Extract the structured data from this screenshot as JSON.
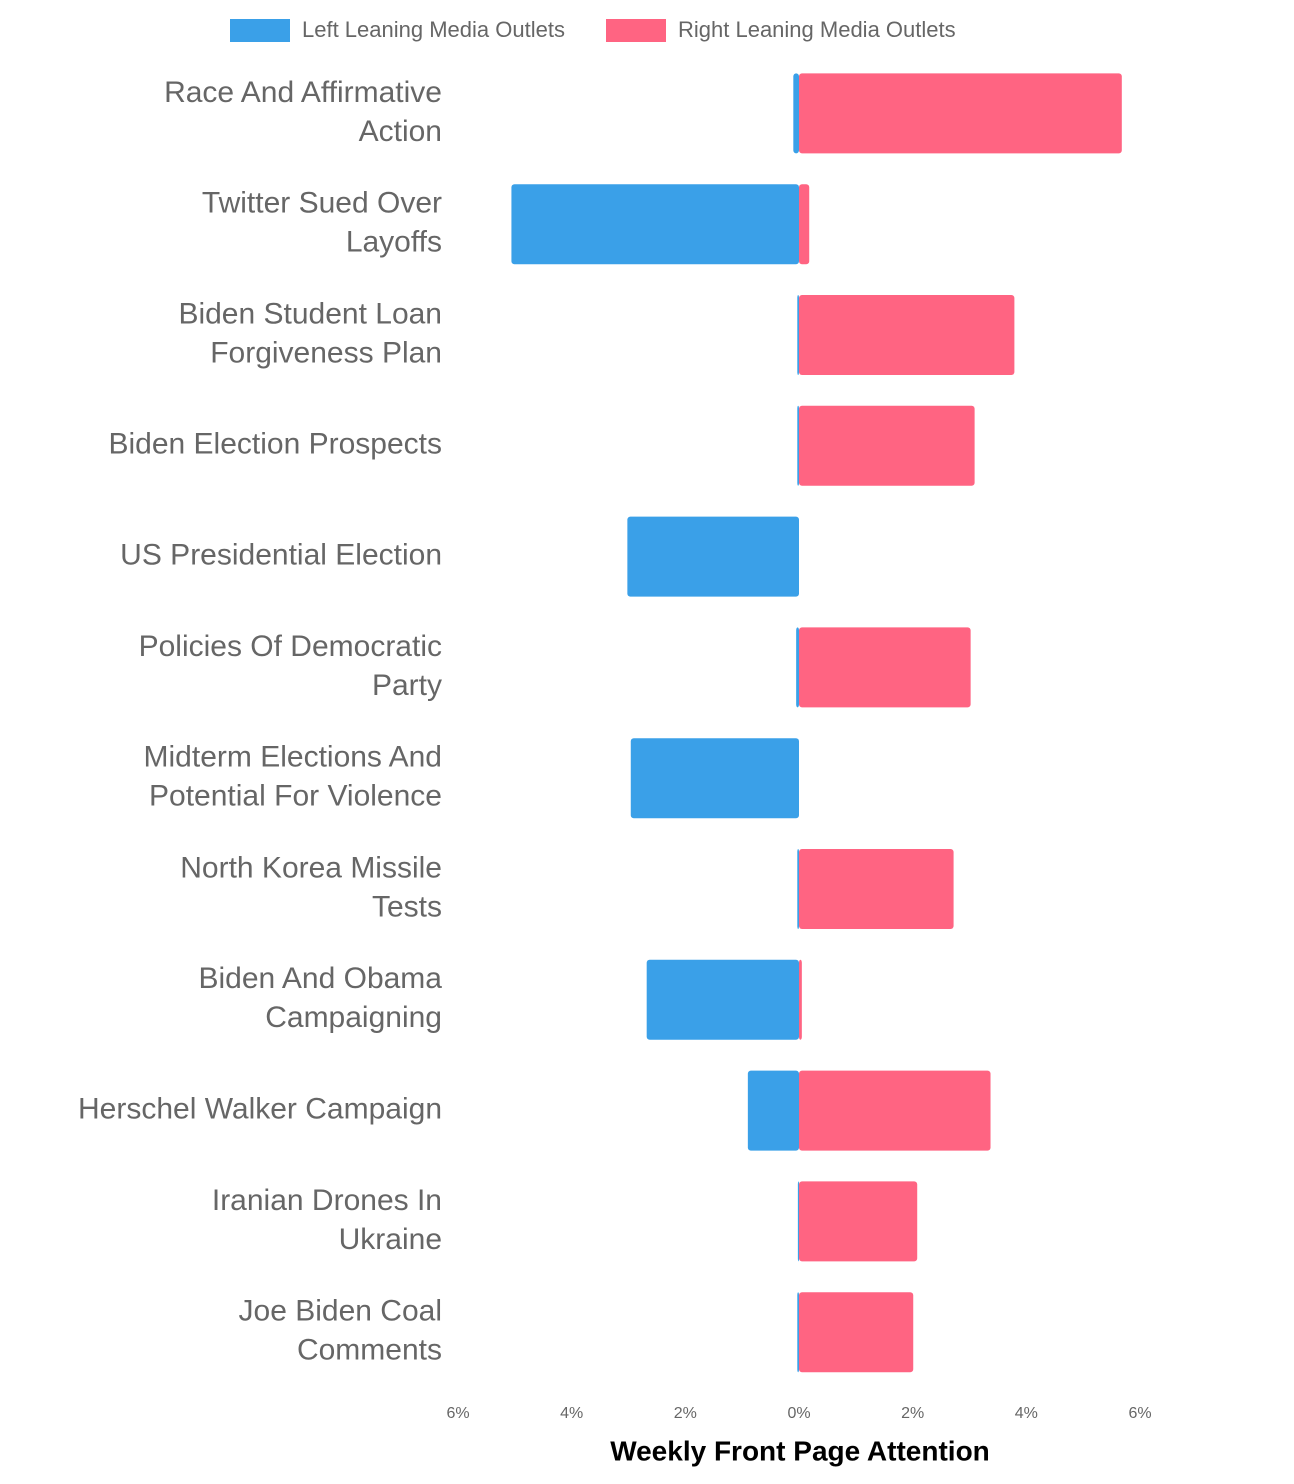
{
  "chart_data": {
    "type": "diverging_bar",
    "x_label": "Weekly Front Page Attention",
    "categories": [
      [
        "Race And Affirmative",
        "Action"
      ],
      [
        "Twitter Sued Over",
        "Layoffs"
      ],
      [
        "Biden Student Loan",
        "Forgiveness Plan"
      ],
      [
        "Biden Election Prospects"
      ],
      [
        "US Presidential Election"
      ],
      [
        "Policies Of Democratic",
        "Party"
      ],
      [
        "Midterm Elections And",
        "Potential For Violence"
      ],
      [
        "North Korea Missile",
        "Tests"
      ],
      [
        "Biden And Obama",
        "Campaigning"
      ],
      [
        "Herschel Walker Campaign"
      ],
      [
        "Iranian Drones In",
        "Ukraine"
      ],
      [
        "Joe Biden Coal",
        "Comments"
      ]
    ],
    "series": [
      {
        "name": "Left Leaning Media Outlets",
        "color": "#3aa0e8",
        "values": [
          -0.1,
          -5.06,
          -0.03,
          -0.03,
          -3.02,
          -0.05,
          -2.96,
          -0.03,
          -2.68,
          -0.9,
          -0.02,
          -0.03
        ]
      },
      {
        "name": "Right Leaning Media Outlets",
        "color": "#ff6482",
        "values": [
          5.68,
          0.18,
          3.79,
          3.09,
          0,
          3.02,
          0,
          2.72,
          0.05,
          3.37,
          2.08,
          2.01
        ]
      }
    ],
    "xlim": [
      -6,
      6
    ],
    "xticks": [
      {
        "value": -6,
        "label": "6%"
      },
      {
        "value": -4,
        "label": "4%"
      },
      {
        "value": -2,
        "label": "2%"
      },
      {
        "value": 0,
        "label": "0%"
      },
      {
        "value": 2,
        "label": "2%"
      },
      {
        "value": 4,
        "label": "4%"
      },
      {
        "value": 6,
        "label": "6%"
      }
    ],
    "legend": "top"
  }
}
